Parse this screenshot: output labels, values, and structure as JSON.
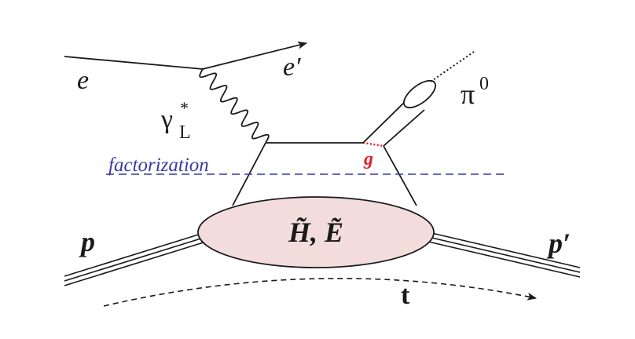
{
  "diagram": {
    "labels": {
      "electron_in": "e",
      "electron_out": "e′",
      "photon": "γ",
      "photon_sup": "*",
      "photon_sub": "L",
      "pion": "π",
      "pion_sup": "0",
      "factorization": "factorization",
      "gluon": "g",
      "gpd": "H̃, Ẽ",
      "proton_in": "p",
      "proton_out": "p′",
      "momentum_transfer": "t"
    },
    "colors": {
      "line": "#1a1a1a",
      "factorization": "#3a3aa0",
      "gluon": "#e0202a",
      "blob_fill": "#f2dcdc"
    }
  }
}
